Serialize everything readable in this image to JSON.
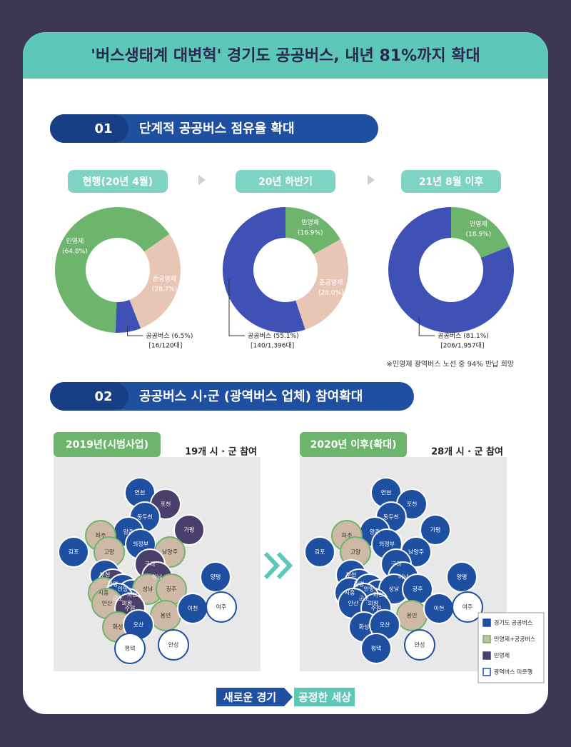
{
  "title": "'버스생태계 대변혁' 경기도 공공버스, 내년 81%까지 확대",
  "section1": {
    "number": "01",
    "heading": "단계적 공공버스 점유율 확대",
    "stages": [
      {
        "label": "현행(20년 4월)",
        "chart": {
          "type": "pie",
          "categories": [
            "민영제",
            "준공영제",
            "공공버스"
          ],
          "values": [
            64.8,
            28.7,
            6.5
          ],
          "value_labels": [
            "(64.8%)",
            "(28.7%)",
            "(6.5%)"
          ],
          "colors": [
            "#6db56d",
            "#e8c6b6",
            "#3f51b5"
          ],
          "note": "[16/120대]"
        }
      },
      {
        "label": "20년 하반기",
        "chart": {
          "type": "pie",
          "categories": [
            "민영제",
            "준공영제",
            "공공버스"
          ],
          "values": [
            16.9,
            28.0,
            55.1
          ],
          "value_labels": [
            "(16.9%)",
            "(28.0%)",
            "(55.1%)"
          ],
          "colors": [
            "#6db56d",
            "#e8c6b6",
            "#3f51b5"
          ],
          "note": "[140/1,396대]"
        }
      },
      {
        "label": "21년 8월 이후",
        "chart": {
          "type": "pie",
          "categories": [
            "민영제",
            "공공버스"
          ],
          "values": [
            18.9,
            81.1
          ],
          "value_labels": [
            "(18.9%)",
            "(81.1%)"
          ],
          "colors": [
            "#6db56d",
            "#3f51b5"
          ],
          "note": "[206/1,957대]"
        }
      }
    ],
    "footnote": "※민영제 광역버스 노선 중 94% 반납 희망"
  },
  "section2": {
    "number": "02",
    "heading": "공공버스 시·군 (광역버스 업체) 참여확대",
    "legend": [
      {
        "label": "경기도 공공버스",
        "color": "#1f4fa0"
      },
      {
        "label": "민영제+공공버스",
        "color": "#cdb9a5"
      },
      {
        "label": "민영제",
        "color": "#4a3f6a"
      },
      {
        "label": "광역버스 미운행",
        "color": "#ffffff"
      }
    ],
    "maps": [
      {
        "label": "2019년(시범사업)",
        "count": "19개 시 · 군 참여",
        "regions": [
          [
            "연천",
            0
          ],
          [
            "포천",
            2
          ],
          [
            "동두천",
            0
          ],
          [
            "양주",
            0
          ],
          [
            "파주",
            1
          ],
          [
            "가평",
            2
          ],
          [
            "의정부",
            0
          ],
          [
            "김포",
            0
          ],
          [
            "고양",
            1
          ],
          [
            "남양주",
            1
          ],
          [
            "구리",
            2
          ],
          [
            "하남",
            2
          ],
          [
            "양평",
            0
          ],
          [
            "부천",
            0
          ],
          [
            "광명",
            2
          ],
          [
            "시흥",
            1
          ],
          [
            "안양",
            0
          ],
          [
            "과천",
            0
          ],
          [
            "성남",
            1
          ],
          [
            "광주",
            1
          ],
          [
            "의왕",
            0
          ],
          [
            "군포",
            0
          ],
          [
            "안산",
            1
          ],
          [
            "수원",
            2
          ],
          [
            "용인",
            1
          ],
          [
            "이천",
            0
          ],
          [
            "여주",
            3
          ],
          [
            "화성",
            1
          ],
          [
            "오산",
            0
          ],
          [
            "평택",
            3
          ],
          [
            "안성",
            3
          ]
        ]
      },
      {
        "label": "2020년 이후(확대)",
        "count": "28개 시 · 군 참여",
        "regions": [
          [
            "연천",
            0
          ],
          [
            "포천",
            0
          ],
          [
            "동두천",
            0
          ],
          [
            "양주",
            0
          ],
          [
            "파주",
            1
          ],
          [
            "가평",
            0
          ],
          [
            "의정부",
            0
          ],
          [
            "김포",
            0
          ],
          [
            "고양",
            1
          ],
          [
            "남양주",
            0
          ],
          [
            "구리",
            0
          ],
          [
            "하남",
            0
          ],
          [
            "양평",
            0
          ],
          [
            "부천",
            0
          ],
          [
            "광명",
            0
          ],
          [
            "시흥",
            0
          ],
          [
            "안양",
            0
          ],
          [
            "과천",
            0
          ],
          [
            "성남",
            0
          ],
          [
            "광주",
            0
          ],
          [
            "의왕",
            0
          ],
          [
            "군포",
            0
          ],
          [
            "안산",
            0
          ],
          [
            "수원",
            0
          ],
          [
            "용인",
            1
          ],
          [
            "이천",
            0
          ],
          [
            "여주",
            3
          ],
          [
            "화성",
            0
          ],
          [
            "오산",
            0
          ],
          [
            "평택",
            0
          ],
          [
            "안성",
            3
          ]
        ]
      }
    ]
  },
  "footer": {
    "left": "새로운 경기",
    "right": "공정한 세상"
  }
}
